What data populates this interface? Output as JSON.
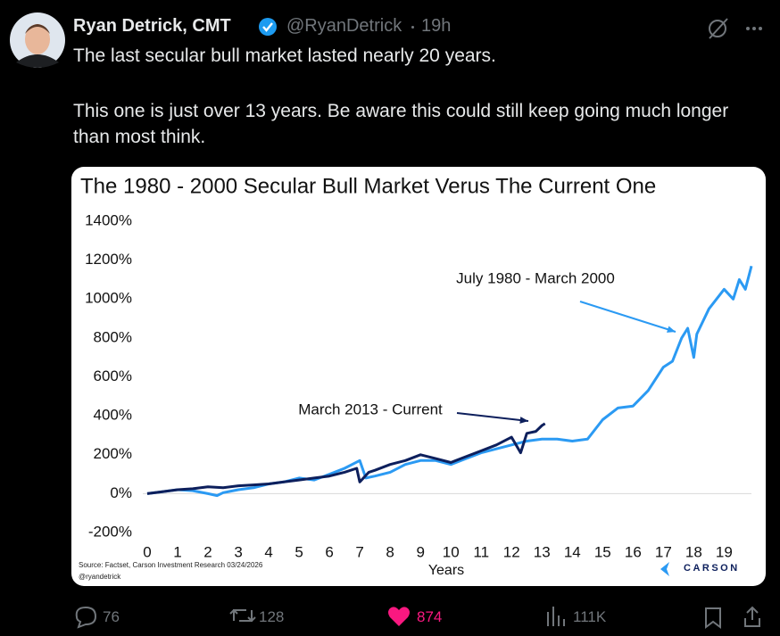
{
  "post": {
    "author": "Ryan Detrick, CMT",
    "handle": "@RyanDetrick",
    "time": "19h",
    "text": [
      "The last secular bull market lasted nearly 20 years.",
      "This one is just over 13 years. Be aware this could still keep going much longer than most think."
    ],
    "replies": "76",
    "reposts": "128",
    "likes": "874",
    "views": "111K"
  },
  "chart_data": {
    "type": "line",
    "title": "The 1980 - 2000 Secular Bull Market Verus The Current One",
    "x_label": "Years",
    "source": "Source: Factset, Carson Investment Research 03/24/2026",
    "credit": "@ryandetrick",
    "logo": "CARSON",
    "xlim": [
      0,
      19.9
    ],
    "xticks": [
      0,
      1,
      2,
      3,
      4,
      5,
      6,
      7,
      8,
      9,
      10,
      11,
      12,
      13,
      14,
      15,
      16,
      17,
      18,
      19
    ],
    "ylim": [
      -200,
      1400
    ],
    "yticks": [
      {
        "value": -200,
        "label": "-200%"
      },
      {
        "value": 0,
        "label": "0%"
      },
      {
        "value": 200,
        "label": "200%"
      },
      {
        "value": 400,
        "label": "400%"
      },
      {
        "value": 600,
        "label": "600%"
      },
      {
        "value": 800,
        "label": "800%"
      },
      {
        "value": 1000,
        "label": "1000%"
      },
      {
        "value": 1200,
        "label": "1200%"
      },
      {
        "value": 1400,
        "label": "1400%"
      }
    ],
    "series": [
      {
        "name": "July 1980 - March 2000",
        "color": "#2b9af3",
        "x": [
          0,
          0.5,
          1,
          1.5,
          2,
          2.3,
          2.5,
          3,
          3.5,
          4,
          4.5,
          5,
          5.5,
          6,
          6.5,
          7,
          7.2,
          7.5,
          8,
          8.5,
          9,
          9.5,
          10,
          10.5,
          11,
          11.5,
          12,
          12.5,
          13,
          13.5,
          14,
          14.5,
          15,
          15.5,
          16,
          16.5,
          17,
          17.3,
          17.6,
          17.8,
          18,
          18.1,
          18.5,
          19,
          19.3,
          19.5,
          19.7,
          19.9
        ],
        "values": [
          0,
          10,
          20,
          15,
          0,
          -10,
          5,
          20,
          30,
          50,
          60,
          80,
          70,
          100,
          130,
          170,
          80,
          90,
          110,
          150,
          170,
          170,
          150,
          180,
          210,
          230,
          250,
          270,
          280,
          280,
          270,
          280,
          380,
          440,
          450,
          530,
          650,
          680,
          800,
          850,
          700,
          820,
          950,
          1050,
          1000,
          1100,
          1050,
          1170
        ]
      },
      {
        "name": "March 2013 - Current",
        "color": "#0d1f5c",
        "x": [
          0,
          0.5,
          1,
          1.5,
          2,
          2.5,
          3,
          3.5,
          4,
          4.5,
          5,
          5.5,
          6,
          6.5,
          6.9,
          7,
          7.3,
          7.5,
          8,
          8.5,
          9,
          9.5,
          10,
          10.5,
          11,
          11.5,
          12,
          12.3,
          12.5,
          12.8,
          13,
          13.1
        ],
        "values": [
          0,
          10,
          20,
          25,
          35,
          30,
          40,
          45,
          50,
          60,
          70,
          80,
          90,
          110,
          130,
          60,
          110,
          120,
          150,
          170,
          200,
          180,
          160,
          190,
          220,
          250,
          290,
          210,
          310,
          320,
          350,
          360
        ]
      }
    ]
  }
}
